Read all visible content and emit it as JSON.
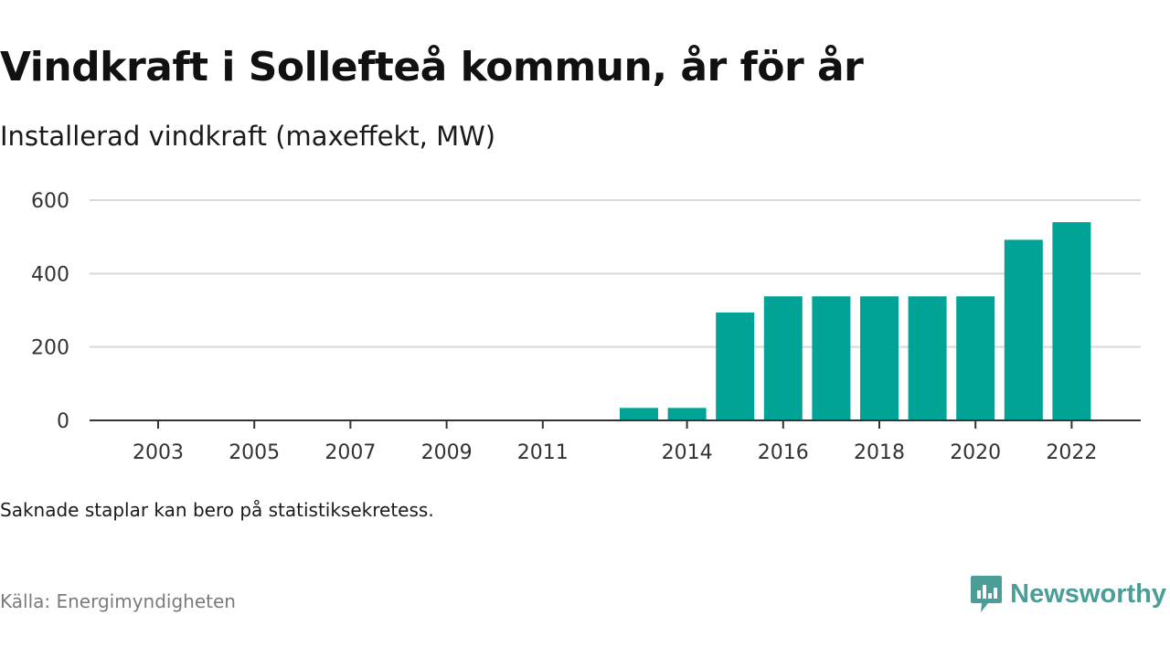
{
  "header": {
    "title": "Vindkraft i Sollefteå kommun, år för år",
    "subtitle": "Installerad vindkraft (maxeffekt, MW)"
  },
  "chart_data": {
    "type": "bar",
    "categories": [
      "2003",
      "2004",
      "2005",
      "2006",
      "2007",
      "2008",
      "2009",
      "2010",
      "2011",
      "2012",
      "2013",
      "2014",
      "2015",
      "2016",
      "2017",
      "2018",
      "2019",
      "2020",
      "2021",
      "2022"
    ],
    "x_tick_labels": [
      "2003",
      "2005",
      "2007",
      "2009",
      "2011",
      "2014",
      "2016",
      "2018",
      "2020",
      "2022"
    ],
    "values": [
      0,
      0,
      0,
      0,
      0,
      0,
      0,
      0,
      0,
      null,
      34,
      34,
      294,
      338,
      338,
      338,
      338,
      338,
      492,
      540
    ],
    "y_ticks": [
      0,
      200,
      400,
      600
    ],
    "ylim": [
      0,
      600
    ],
    "grid": true,
    "legend": "none",
    "bar_color": "#00a396",
    "grid_color": "#d9d9d9",
    "axis_color": "#333333"
  },
  "footer": {
    "note": "Saknade staplar kan bero på statistiksekretess.",
    "source": "Källa: Energimyndigheten",
    "brand": "Newsworthy",
    "brand_icon": "newsworthy-logo-icon",
    "brand_color": "#4a9e97"
  }
}
